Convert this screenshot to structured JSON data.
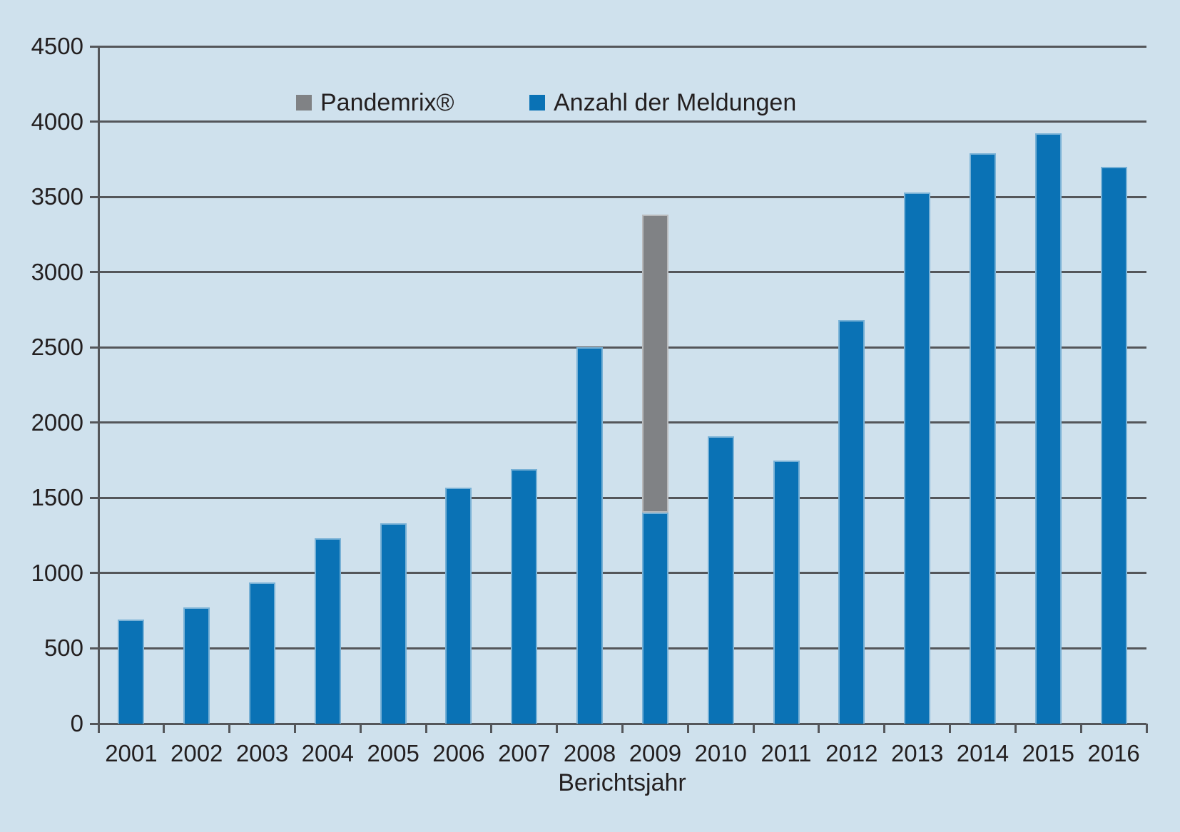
{
  "chart_data": {
    "type": "bar",
    "stacked": true,
    "title": "",
    "xlabel": "Berichtsjahr",
    "ylabel": "",
    "ylim": [
      0,
      4500
    ],
    "ytick_step": 500,
    "grid": true,
    "legend_position": "top-inside",
    "categories": [
      "2001",
      "2002",
      "2003",
      "2004",
      "2005",
      "2006",
      "2007",
      "2008",
      "2009",
      "2010",
      "2011",
      "2012",
      "2013",
      "2014",
      "2015",
      "2016"
    ],
    "series": [
      {
        "name": "Anzahl der Meldungen",
        "color": "#0a72b5",
        "values": [
          690,
          770,
          940,
          1230,
          1330,
          1570,
          1690,
          2500,
          1400,
          1910,
          1750,
          2680,
          3530,
          3790,
          3920,
          3700
        ]
      },
      {
        "name": "Pandemrix®",
        "color": "#808285",
        "values": [
          0,
          0,
          0,
          0,
          0,
          0,
          0,
          0,
          1980,
          0,
          0,
          0,
          0,
          0,
          0,
          0
        ]
      }
    ],
    "legend": [
      {
        "label": "Pandemrix®",
        "color": "#808285"
      },
      {
        "label": "Anzahl der Meldungen",
        "color": "#0a72b5"
      }
    ],
    "colors": {
      "background": "#cfe1ed",
      "grid": "#54565a",
      "text": "#231f20"
    }
  }
}
